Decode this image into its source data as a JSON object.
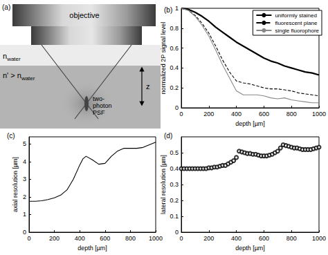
{
  "diagram": {
    "label": "(a)",
    "objective": "objective",
    "n_water": {
      "base": "n",
      "sub": "water"
    },
    "n_sample": {
      "base": "n' > n",
      "sub": "water"
    },
    "z": "z",
    "psf": [
      "two-",
      "photon",
      "PSF"
    ]
  },
  "chart_data": [
    {
      "type": "line",
      "title": "(b)",
      "x_label": "depth [µm]",
      "y_label": "normalized 2P signal level",
      "x": [
        0,
        50,
        100,
        150,
        200,
        250,
        300,
        350,
        400,
        450,
        500,
        550,
        600,
        650,
        700,
        750,
        800,
        850,
        900,
        950,
        1000
      ],
      "series": [
        {
          "name": "uniformly stained",
          "color": "#000000",
          "line_style": "solid",
          "values": [
            1.0,
            0.99,
            0.96,
            0.92,
            0.87,
            0.81,
            0.76,
            0.71,
            0.66,
            0.62,
            0.58,
            0.54,
            0.5,
            0.47,
            0.45,
            0.42,
            0.4,
            0.38,
            0.36,
            0.35,
            0.33
          ]
        },
        {
          "name": "fluorescent plane",
          "color": "#000000",
          "line_style": "dashed",
          "values": [
            1.0,
            0.98,
            0.93,
            0.85,
            0.75,
            0.62,
            0.48,
            0.36,
            0.27,
            0.25,
            0.24,
            0.22,
            0.2,
            0.19,
            0.19,
            0.18,
            0.17,
            0.15,
            0.14,
            0.13,
            0.12
          ]
        },
        {
          "name": "single fluorophore",
          "color": "#888888",
          "line_style": "solid",
          "values": [
            1.0,
            0.98,
            0.92,
            0.83,
            0.72,
            0.58,
            0.43,
            0.3,
            0.17,
            0.13,
            0.13,
            0.13,
            0.12,
            0.1,
            0.09,
            0.1,
            0.08,
            0.07,
            0.06,
            0.05,
            0.05
          ]
        }
      ],
      "xlim": [
        0,
        1000
      ],
      "xticks": [
        0,
        200,
        400,
        600,
        800,
        1000
      ],
      "ylim": [
        0,
        1
      ],
      "yticks": [
        0,
        0.2,
        0.4,
        0.6,
        0.8,
        1
      ],
      "grid": false,
      "legend": "upper right"
    },
    {
      "type": "line",
      "title": "(c)",
      "x_label": "depth [µm]",
      "y_label": "axial resolution [µm]",
      "x": [
        0,
        50,
        100,
        150,
        200,
        250,
        300,
        350,
        400,
        425,
        450,
        500,
        550,
        600,
        650,
        700,
        750,
        800,
        850,
        900,
        950,
        1000
      ],
      "values": [
        1.75,
        1.75,
        1.78,
        1.85,
        1.95,
        2.1,
        2.4,
        3.0,
        3.8,
        4.15,
        4.3,
        4.1,
        3.85,
        3.9,
        4.3,
        4.6,
        4.75,
        4.75,
        4.75,
        4.8,
        4.95,
        5.1
      ],
      "color": "#000000",
      "line_style": "solid",
      "xlim": [
        0,
        1000
      ],
      "xticks": [
        0,
        200,
        400,
        600,
        800,
        1000
      ],
      "ylim": [
        0,
        5.4
      ],
      "yticks": [
        0,
        1,
        2,
        3,
        4,
        5
      ],
      "grid": false
    },
    {
      "type": "scatter",
      "title": "(d)",
      "x_label": "depth [µm]",
      "y_label": "lateral resolution [µm]",
      "x": [
        0,
        20,
        40,
        60,
        80,
        100,
        120,
        140,
        160,
        180,
        200,
        220,
        240,
        260,
        280,
        300,
        320,
        340,
        360,
        380,
        400,
        420,
        440,
        460,
        480,
        500,
        520,
        540,
        560,
        580,
        600,
        620,
        640,
        660,
        680,
        700,
        720,
        740,
        760,
        780,
        800,
        820,
        840,
        860,
        880,
        900,
        920,
        940,
        960,
        980,
        1000
      ],
      "values": [
        0.4,
        0.4,
        0.4,
        0.4,
        0.4,
        0.4,
        0.4,
        0.4,
        0.4,
        0.4,
        0.405,
        0.405,
        0.41,
        0.41,
        0.415,
        0.42,
        0.42,
        0.43,
        0.44,
        0.45,
        0.47,
        0.51,
        0.505,
        0.5,
        0.495,
        0.495,
        0.49,
        0.49,
        0.485,
        0.48,
        0.48,
        0.48,
        0.485,
        0.49,
        0.5,
        0.51,
        0.53,
        0.55,
        0.545,
        0.54,
        0.535,
        0.53,
        0.53,
        0.525,
        0.52,
        0.52,
        0.52,
        0.52,
        0.525,
        0.53,
        0.535
      ],
      "color": "#000000",
      "marker": "circle",
      "xlim": [
        0,
        1000
      ],
      "xticks": [
        0,
        200,
        400,
        600,
        800,
        1000
      ],
      "ylim": [
        0,
        0.6
      ],
      "yticks": [
        0,
        0.1,
        0.2,
        0.3,
        0.4,
        0.5
      ],
      "grid": false
    }
  ]
}
